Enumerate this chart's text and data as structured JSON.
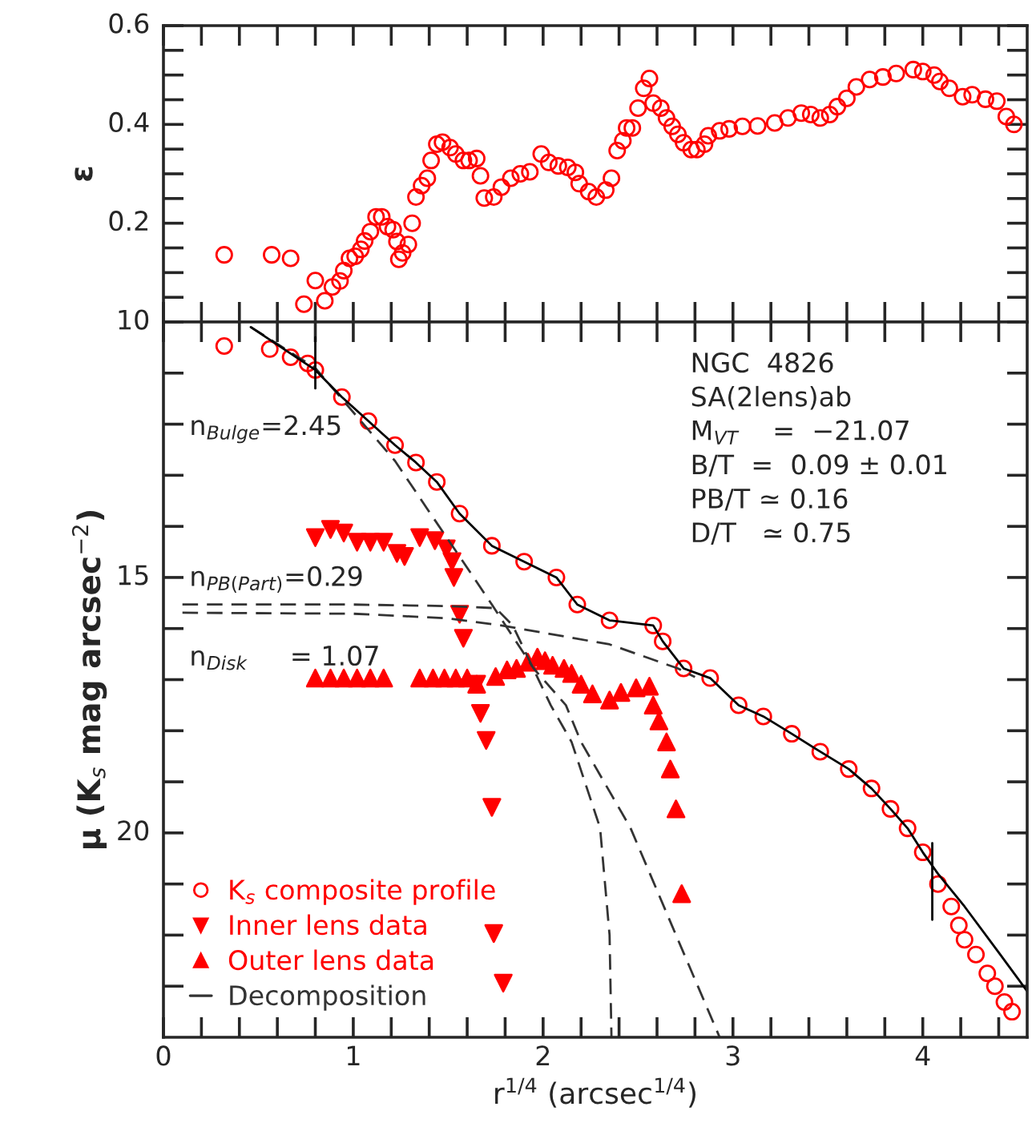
{
  "chart_data": [
    {
      "type": "scatter",
      "ylabel": "ε",
      "xlim": [
        0,
        4.55
      ],
      "ylim": [
        0,
        0.6
      ],
      "xticks": [
        {
          "value": 0,
          "label": null
        },
        {
          "value": 0.2,
          "label": null
        },
        {
          "value": 0.4,
          "label": null
        },
        {
          "value": 0.6,
          "label": null
        },
        {
          "value": 0.8,
          "label": null
        },
        {
          "value": 1,
          "label": null
        },
        {
          "value": 1.2,
          "label": null
        },
        {
          "value": 1.4,
          "label": null
        },
        {
          "value": 1.6,
          "label": null
        },
        {
          "value": 1.8,
          "label": null
        },
        {
          "value": 2,
          "label": null
        },
        {
          "value": 2.2,
          "label": null
        },
        {
          "value": 2.4,
          "label": null
        },
        {
          "value": 2.6,
          "label": null
        },
        {
          "value": 2.8,
          "label": null
        },
        {
          "value": 3,
          "label": null
        },
        {
          "value": 3.2,
          "label": null
        },
        {
          "value": 3.4,
          "label": null
        },
        {
          "value": 3.6,
          "label": null
        },
        {
          "value": 3.8,
          "label": null
        },
        {
          "value": 4,
          "label": null
        },
        {
          "value": 4.2,
          "label": null
        },
        {
          "value": 4.4,
          "label": null
        }
      ],
      "yticks": [
        {
          "value": 0,
          "label": null
        },
        {
          "value": 0.05,
          "label": null
        },
        {
          "value": 0.1,
          "label": null
        },
        {
          "value": 0.15,
          "label": null
        },
        0.2,
        {
          "value": 0.25,
          "label": null
        },
        {
          "value": 0.3,
          "label": null
        },
        {
          "value": 0.35,
          "label": null
        },
        0.4,
        {
          "value": 0.45,
          "label": null
        },
        {
          "value": 0.5,
          "label": null
        },
        {
          "value": 0.55,
          "label": null
        },
        0.6
      ],
      "tick_labels": "y",
      "grid": false,
      "legend": false,
      "series": [
        {
          "color": "#ff0000",
          "marker": "circle",
          "x": [
            0.32,
            0.57,
            0.67,
            0.74,
            0.8,
            0.85,
            0.89,
            0.93,
            0.95,
            0.98,
            1.01,
            1.04,
            1.06,
            1.09,
            1.12,
            1.15,
            1.18,
            1.21,
            1.23,
            1.24,
            1.26,
            1.29,
            1.31,
            1.33,
            1.36,
            1.39,
            1.41,
            1.44,
            1.47,
            1.51,
            1.54,
            1.58,
            1.61,
            1.65,
            1.67,
            1.69,
            1.74,
            1.78,
            1.83,
            1.88,
            1.93,
            1.99,
            2.03,
            2.08,
            2.13,
            2.17,
            2.19,
            2.24,
            2.28,
            2.33,
            2.36,
            2.39,
            2.42,
            2.44,
            2.47,
            2.5,
            2.53,
            2.56,
            2.58,
            2.62,
            2.65,
            2.68,
            2.71,
            2.74,
            2.78,
            2.81,
            2.85,
            2.87,
            2.93,
            2.98,
            3.05,
            3.13,
            3.22,
            3.29,
            3.36,
            3.41,
            3.46,
            3.51,
            3.55,
            3.6,
            3.65,
            3.72,
            3.79,
            3.86,
            3.95,
            4.0,
            4.06,
            4.09,
            4.14,
            4.21,
            4.26,
            4.33,
            4.39,
            4.44,
            4.48
          ],
          "values": [
            0.136,
            0.136,
            0.129,
            0.036,
            0.084,
            0.043,
            0.071,
            0.083,
            0.104,
            0.129,
            0.133,
            0.147,
            0.164,
            0.183,
            0.213,
            0.213,
            0.193,
            0.187,
            0.163,
            0.127,
            0.14,
            0.157,
            0.2,
            0.253,
            0.276,
            0.291,
            0.327,
            0.36,
            0.364,
            0.353,
            0.34,
            0.327,
            0.327,
            0.331,
            0.296,
            0.251,
            0.253,
            0.273,
            0.291,
            0.3,
            0.304,
            0.34,
            0.323,
            0.316,
            0.313,
            0.303,
            0.28,
            0.264,
            0.253,
            0.267,
            0.291,
            0.347,
            0.367,
            0.393,
            0.393,
            0.433,
            0.473,
            0.493,
            0.443,
            0.433,
            0.413,
            0.396,
            0.38,
            0.363,
            0.349,
            0.349,
            0.36,
            0.377,
            0.387,
            0.391,
            0.396,
            0.397,
            0.403,
            0.413,
            0.423,
            0.42,
            0.413,
            0.42,
            0.436,
            0.453,
            0.476,
            0.491,
            0.496,
            0.503,
            0.511,
            0.507,
            0.5,
            0.487,
            0.473,
            0.456,
            0.46,
            0.451,
            0.447,
            0.416,
            0.4
          ]
        }
      ]
    },
    {
      "type": "scatter",
      "xlabel": "r$^{1/4}$ (arcsec$^{1/4}$)",
      "ylabel": "μ (K$_{s}$ mag arcsec$^{−2}$)",
      "xlim": [
        0,
        4.55
      ],
      "ylim": [
        24,
        10
      ],
      "xticks": [
        0,
        {
          "value": 0.2,
          "label": null
        },
        {
          "value": 0.4,
          "label": null
        },
        {
          "value": 0.6,
          "label": null
        },
        {
          "value": 0.8,
          "label": null
        },
        1,
        {
          "value": 1.2,
          "label": null
        },
        {
          "value": 1.4,
          "label": null
        },
        {
          "value": 1.6,
          "label": null
        },
        {
          "value": 1.8,
          "label": null
        },
        2,
        {
          "value": 2.2,
          "label": null
        },
        {
          "value": 2.4,
          "label": null
        },
        {
          "value": 2.6,
          "label": null
        },
        {
          "value": 2.8,
          "label": null
        },
        3,
        {
          "value": 3.2,
          "label": null
        },
        {
          "value": 3.4,
          "label": null
        },
        {
          "value": 3.6,
          "label": null
        },
        {
          "value": 3.8,
          "label": null
        },
        4,
        {
          "value": 4.2,
          "label": null
        },
        {
          "value": 4.4,
          "label": null
        }
      ],
      "yticks": [
        10,
        {
          "value": 11,
          "label": null
        },
        {
          "value": 12,
          "label": null
        },
        {
          "value": 13,
          "label": null
        },
        {
          "value": 14,
          "label": null
        },
        15,
        {
          "value": 16,
          "label": null
        },
        {
          "value": 17,
          "label": null
        },
        {
          "value": 18,
          "label": null
        },
        {
          "value": 19,
          "label": null
        },
        20,
        {
          "value": 21,
          "label": null
        },
        {
          "value": 22,
          "label": null
        },
        {
          "value": 23,
          "label": null
        }
      ],
      "grid": false,
      "legend": "bottom left",
      "annotations": [
        "n$_{Bulge}$=2.45",
        "n$_{PB(Part)}$=0.29",
        "n$_{Disk}$     = 1.07",
        "NGC  4826",
        "SA(2lens)ab",
        "M$_{VT}$    =  −21.07",
        "B/T  =  0.09 ± 0.01",
        "PB/T ≃ 0.16",
        "D/T   ≃ 0.75"
      ],
      "series": [
        {
          "type": "scatter",
          "name": "K$_{s}$ composite profile",
          "color": "#ff0000",
          "marker": "circle",
          "x": [
            0.32,
            0.56,
            0.67,
            0.76,
            0.8,
            0.94,
            1.08,
            1.22,
            1.33,
            1.44,
            1.56,
            1.73,
            1.9,
            2.07,
            2.18,
            2.35,
            2.58,
            2.63,
            2.74,
            2.88,
            3.03,
            3.16,
            3.31,
            3.46,
            3.61,
            3.73,
            3.83,
            3.92,
            4.0,
            4.08,
            4.15,
            4.19,
            4.22,
            4.28,
            4.34,
            4.38,
            4.43,
            4.47
          ],
          "values": [
            10.47,
            10.53,
            10.69,
            10.81,
            10.94,
            11.47,
            11.94,
            12.41,
            12.75,
            13.13,
            13.75,
            14.38,
            14.69,
            15.0,
            15.53,
            15.84,
            15.94,
            16.25,
            16.78,
            16.97,
            17.5,
            17.72,
            18.06,
            18.41,
            18.75,
            19.13,
            19.53,
            19.91,
            20.38,
            21.0,
            21.44,
            21.81,
            22.09,
            22.38,
            22.75,
            23.0,
            23.31,
            23.5
          ]
        },
        {
          "type": "scatter",
          "name": "Inner lens data",
          "color": "#ff0000",
          "marker": "triangle_down",
          "x": [
            0.8,
            0.88,
            0.95,
            1.02,
            1.09,
            1.16,
            1.23,
            1.27,
            1.35,
            1.43,
            1.49,
            1.52,
            1.53,
            1.56,
            1.58,
            1.65,
            1.67,
            1.7,
            1.73,
            1.74,
            1.79
          ],
          "values": [
            14.22,
            14.06,
            14.13,
            14.31,
            14.31,
            14.31,
            14.53,
            14.59,
            14.22,
            14.28,
            14.44,
            14.69,
            15.0,
            15.72,
            16.19,
            17.09,
            17.66,
            18.19,
            19.5,
            21.97,
            22.94
          ]
        },
        {
          "type": "scatter",
          "name": "Outer lens data",
          "color": "#ff0000",
          "marker": "triangle",
          "x": [
            0.8,
            0.88,
            0.95,
            1.02,
            1.09,
            1.16,
            1.35,
            1.42,
            1.48,
            1.54,
            1.6,
            1.65,
            1.75,
            1.81,
            1.86,
            1.92,
            1.97,
            2.01,
            2.05,
            2.11,
            2.15,
            2.2,
            2.26,
            2.35,
            2.41,
            2.49,
            2.56,
            2.58,
            2.61,
            2.65,
            2.67,
            2.7,
            2.73
          ],
          "values": [
            16.97,
            16.97,
            16.97,
            16.97,
            16.97,
            16.97,
            16.97,
            16.97,
            16.97,
            16.97,
            16.97,
            17.09,
            16.94,
            16.81,
            16.78,
            16.66,
            16.56,
            16.63,
            16.72,
            16.78,
            16.88,
            17.09,
            17.28,
            17.4,
            17.25,
            17.16,
            17.13,
            17.5,
            17.81,
            18.22,
            18.75,
            19.53,
            21.19
          ]
        },
        {
          "type": "line",
          "name": "Decomposition",
          "color": "#333333",
          "line_style": "dashed",
          "x": [
            0.46,
            0.8,
            1.22,
            1.39,
            1.56,
            1.73,
            1.95,
            2.12,
            2.2,
            2.46,
            2.7,
            2.93
          ],
          "values": [
            10.1,
            10.9,
            12.72,
            13.66,
            14.59,
            15.53,
            16.78,
            17.5,
            18.22,
            19.9,
            22.0,
            24.0
          ]
        },
        {
          "type": "line",
          "color": "#333333",
          "line_style": "dashed",
          "x": [
            0.1,
            1.0,
            1.5,
            1.75,
            1.84,
            2.04,
            2.15,
            2.3,
            2.35,
            2.36
          ],
          "values": [
            15.53,
            15.53,
            15.56,
            15.6,
            15.94,
            17.5,
            18.22,
            19.9,
            22.0,
            24.0
          ]
        },
        {
          "type": "line",
          "color": "#333333",
          "line_style": "dashed",
          "x": [
            0.1,
            1.0,
            1.5,
            1.78,
            2.35,
            2.71,
            2.8
          ],
          "values": [
            15.69,
            15.71,
            15.8,
            15.94,
            16.31,
            16.78,
            16.95
          ]
        },
        {
          "type": "line",
          "color": "#000000",
          "line_style": "solid",
          "x": [
            0.46,
            0.8,
            0.94,
            1.08,
            1.22,
            1.33,
            1.44,
            1.56,
            1.73,
            1.9,
            2.07,
            2.18,
            2.35,
            2.58,
            2.63,
            2.74,
            2.88,
            3.03,
            3.16,
            3.31,
            3.46,
            3.61,
            3.73,
            3.83,
            3.92,
            4.0,
            4.08,
            4.22,
            4.4,
            4.55
          ],
          "values": [
            10.1,
            10.94,
            11.47,
            11.94,
            12.41,
            12.75,
            13.13,
            13.75,
            14.38,
            14.69,
            15.0,
            15.53,
            15.84,
            15.94,
            16.25,
            16.78,
            16.97,
            17.5,
            17.72,
            18.06,
            18.41,
            18.75,
            19.13,
            19.53,
            19.91,
            20.38,
            20.8,
            21.44,
            22.34,
            23.1
          ]
        },
        {
          "type": "line",
          "color": "#000000",
          "line_style": "solid",
          "x": [
            0.8,
            0.8,
            2.4,
            4.05,
            4.05
          ],
          "values": [
            10.3,
            11.3,
            null,
            20.2,
            21.7
          ]
        }
      ]
    }
  ]
}
